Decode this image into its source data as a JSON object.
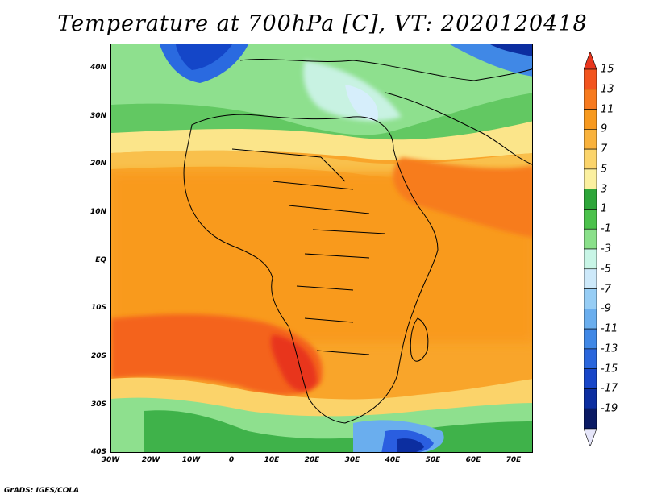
{
  "title": "Temperature at 700hPa [C], VT: 2020120418",
  "credit": "GrADS: IGES/COLA",
  "map": {
    "region": "Africa",
    "lon_range": [
      -30,
      75
    ],
    "lat_range": [
      -40,
      45
    ],
    "lat_labels": [
      "40N",
      "30N",
      "20N",
      "10N",
      "EQ",
      "10S",
      "20S",
      "30S",
      "40S"
    ],
    "lon_labels": [
      "30W",
      "20W",
      "10W",
      "0",
      "10E",
      "20E",
      "30E",
      "40E",
      "50E",
      "60E",
      "70E"
    ]
  },
  "colorbar": {
    "labels": [
      "15",
      "13",
      "11",
      "9",
      "7",
      "5",
      "3",
      "1",
      "-1",
      "-3",
      "-5",
      "-7",
      "-9",
      "-11",
      "-13",
      "-15",
      "-17",
      "-19"
    ],
    "colors": [
      "#e8361e",
      "#f2541e",
      "#f77a1e",
      "#f7991e",
      "#f9b23c",
      "#fbd46b",
      "#fbf0a0",
      "#2ea63a",
      "#4cc24c",
      "#8ae08a",
      "#c8f5e6",
      "#cde9fa",
      "#96cdf5",
      "#6aaeee",
      "#4088e6",
      "#2a66dc",
      "#1846c8",
      "#0c2ea0",
      "#0a1a64",
      "#e6e6fa"
    ]
  }
}
